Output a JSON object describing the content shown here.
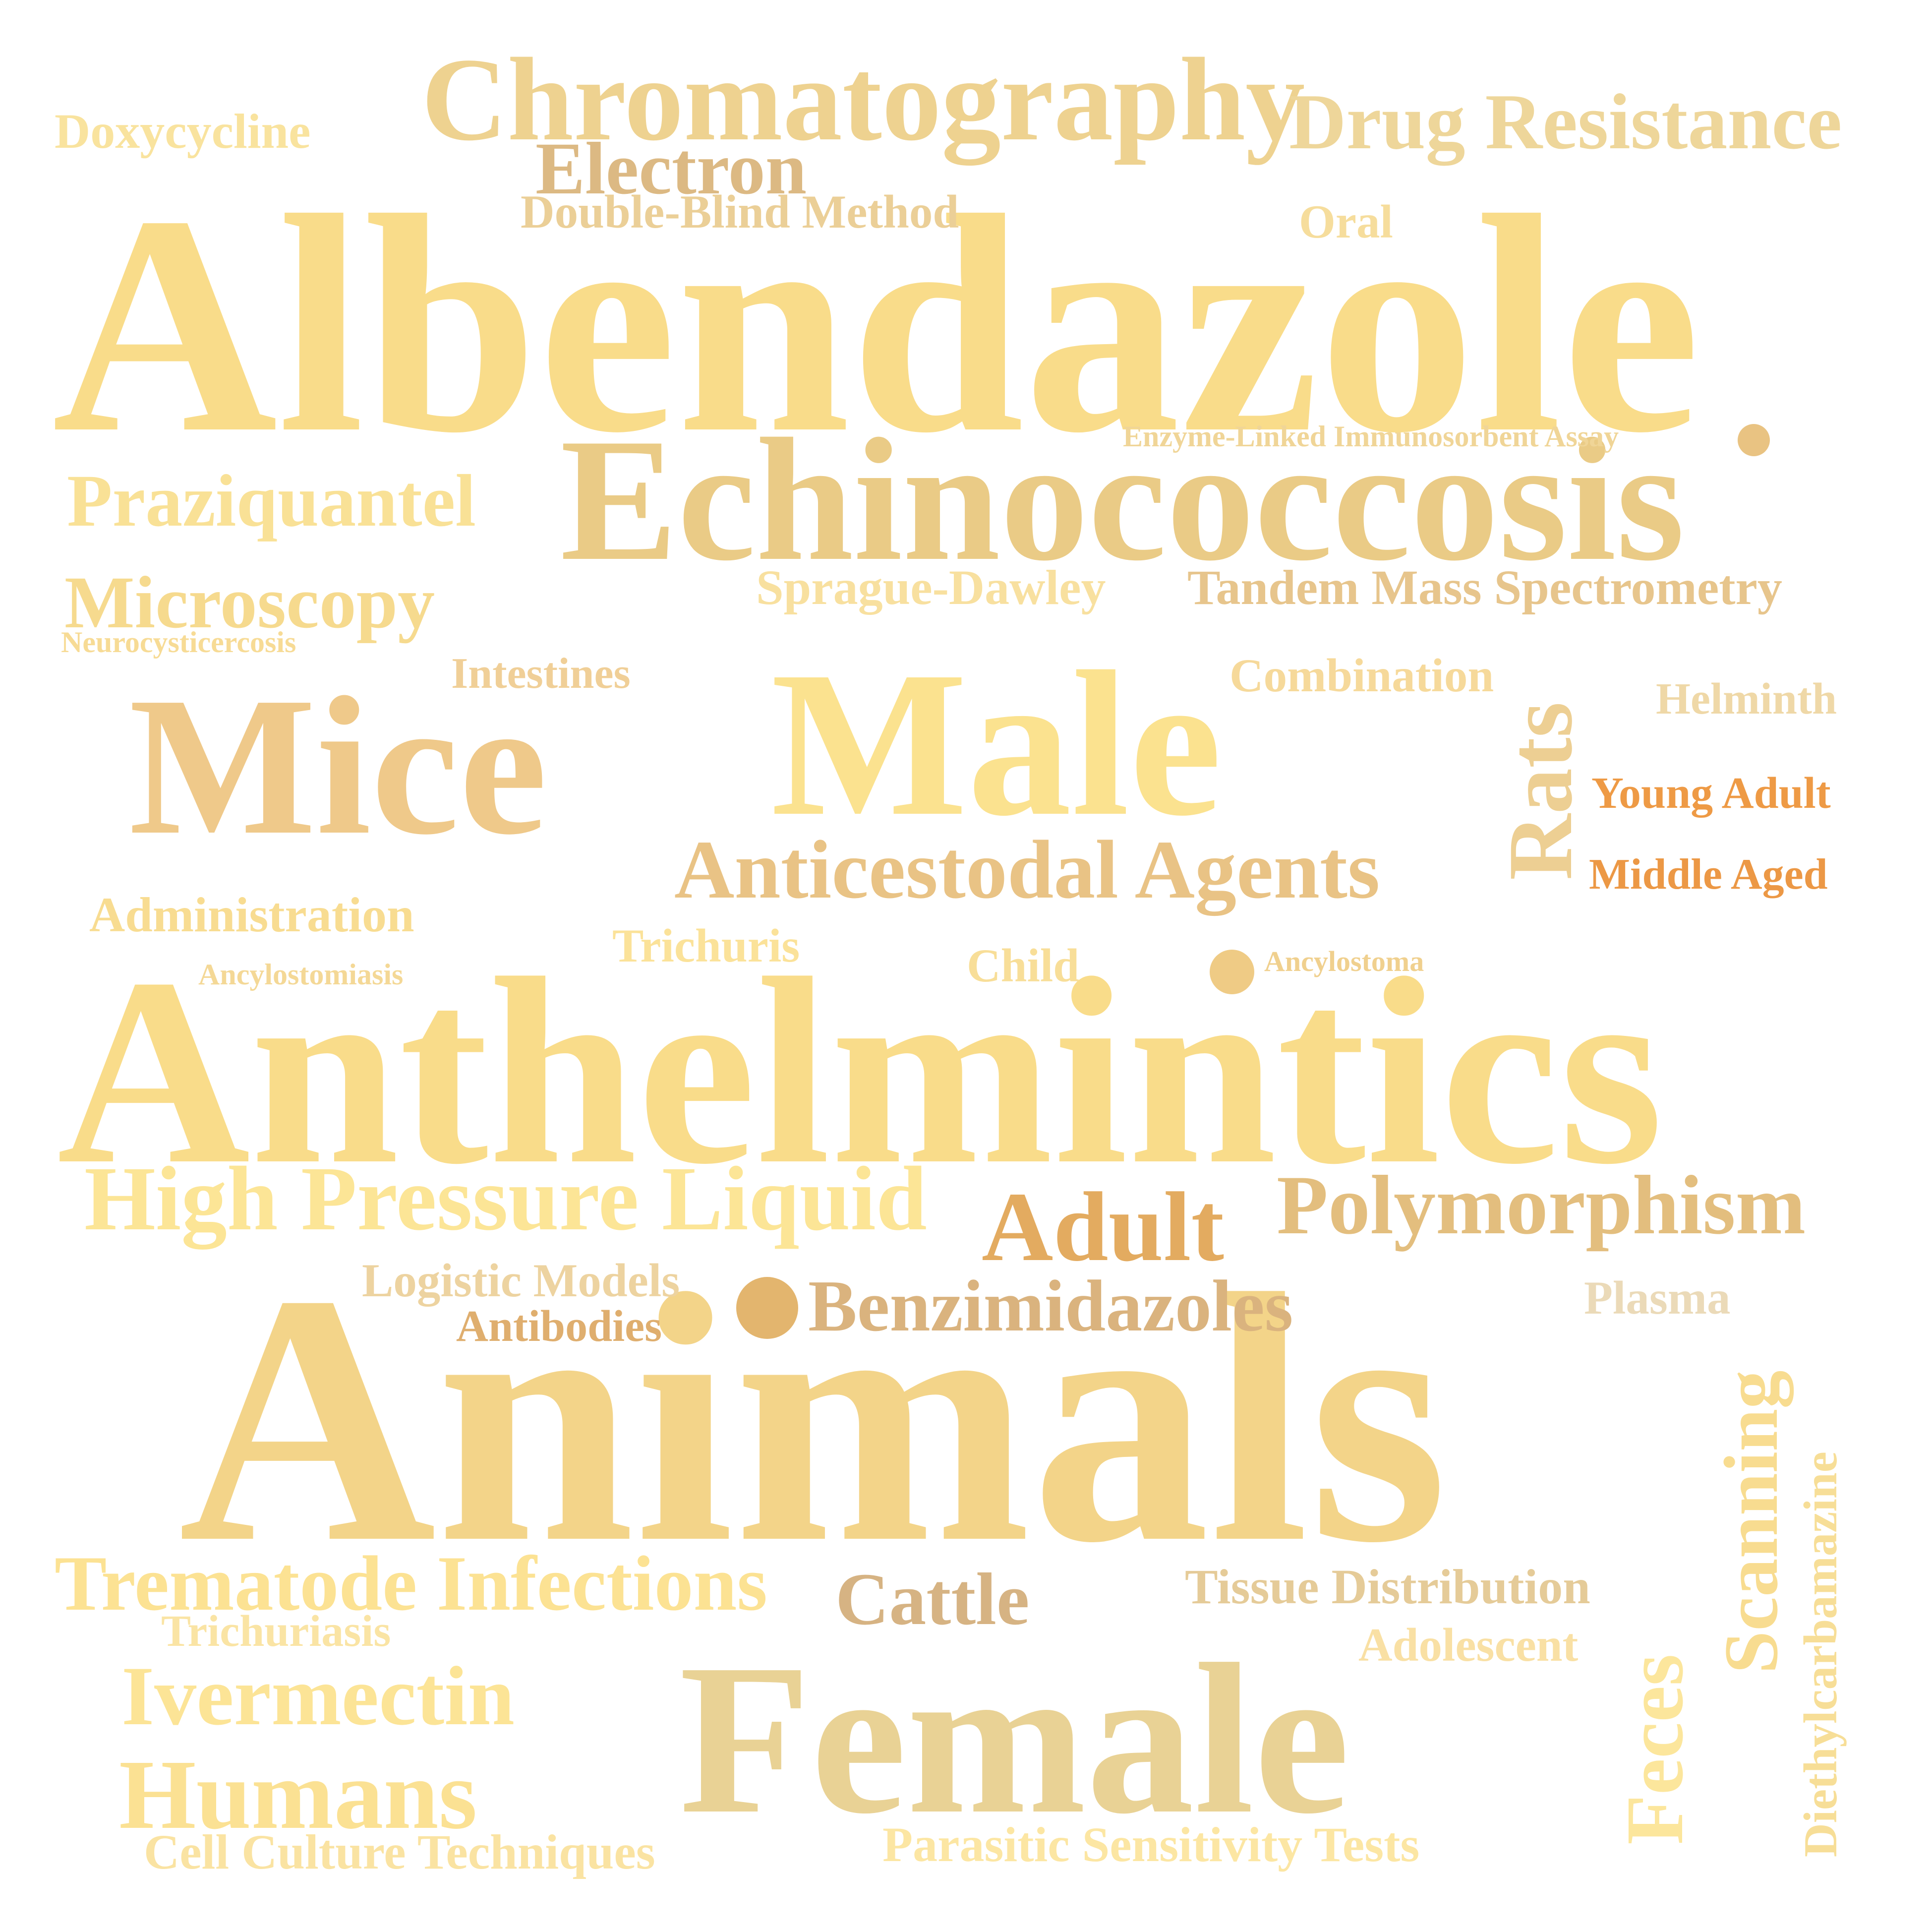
{
  "words": {
    "albendazole": {
      "text": "Albendazole",
      "color": "#F9DC8A"
    },
    "animals": {
      "text": "Animals",
      "color": "#F3D489"
    },
    "anthelmintics": {
      "text": "Anthelmintics",
      "color": "#F9DC8A"
    },
    "echinococcosis": {
      "text": "Echinococcosis",
      "color": "#EACB86"
    },
    "male": {
      "text": "Male",
      "color": "#FBE28F"
    },
    "mice": {
      "text": "Mice",
      "color": "#EFC98A"
    },
    "female": {
      "text": "Female",
      "color": "#E9D295"
    },
    "chromatography": {
      "text": "Chromatography",
      "color": "#EED290"
    },
    "drug_resistance": {
      "text": "Drug Resistance",
      "color": "#EED69A"
    },
    "electron": {
      "text": "Electron",
      "color": "#DCB983"
    },
    "double_blind": {
      "text": "Double-Blind Method",
      "color": "#EBCF97"
    },
    "oral": {
      "text": "Oral",
      "color": "#F6DD9C"
    },
    "doxycycline": {
      "text": "Doxycycline",
      "color": "#F9E39E"
    },
    "enzyme_linked": {
      "text": "Enzyme-Linked Immunosorbent Assay",
      "color": "#F0D597"
    },
    "praziquantel": {
      "text": "Praziquantel",
      "color": "#F9E196"
    },
    "microscopy": {
      "text": "Microscopy",
      "color": "#F6DA8E"
    },
    "neurocysticercosis": {
      "text": "Neurocysticercosis",
      "color": "#F7DB95"
    },
    "sprague_dawley": {
      "text": "Sprague-Dawley",
      "color": "#F8E09F"
    },
    "tandem_ms": {
      "text": "Tandem Mass Spectrometry",
      "color": "#E7C58C"
    },
    "intestines": {
      "text": "Intestines",
      "color": "#F0CF97"
    },
    "combination": {
      "text": "Combination",
      "color": "#F6D99A"
    },
    "rats": {
      "text": "Rats",
      "color": "#EDCF93"
    },
    "helminth": {
      "text": "Helminth",
      "color": "#EFD8A7"
    },
    "young_adult": {
      "text": "Young Adult",
      "color": "#EE9A45"
    },
    "middle_aged": {
      "text": "Middle Aged",
      "color": "#EC9845"
    },
    "anticestodal": {
      "text": "Anticestodal Agents",
      "color": "#E9C385"
    },
    "administration": {
      "text": "Administration",
      "color": "#F8DC91"
    },
    "trichuris": {
      "text": "Trichuris",
      "color": "#FBE299"
    },
    "child": {
      "text": "Child",
      "color": "#F8DE98"
    },
    "ancylostomiasis": {
      "text": "Ancylostomiasis",
      "color": "#F4D896"
    },
    "ancylostoma": {
      "text": "Ancylostoma",
      "color": "#F0D08E"
    },
    "high_pressure": {
      "text": "High Pressure Liquid",
      "color": "#FCE596"
    },
    "adult": {
      "text": "Adult",
      "color": "#E3AB60"
    },
    "polymorphism": {
      "text": "Polymorphism",
      "color": "#E3BE7E"
    },
    "logistic_models": {
      "text": "Logistic Models",
      "color": "#EDD3A0"
    },
    "antibodies": {
      "text": "Antibodies",
      "color": "#DFAE6E"
    },
    "benzimidazoles": {
      "text": "Benzimidazoles",
      "color": "#DAB37E"
    },
    "plasma": {
      "text": "Plasma",
      "color": "#EBDAB8"
    },
    "scanning": {
      "text": "Scanning",
      "color": "#F8DC90"
    },
    "diethylcarbamazine": {
      "text": "Diethylcarbamazine",
      "color": "#F7DE97"
    },
    "trematode": {
      "text": "Trematode Infections",
      "color": "#FCE293"
    },
    "cattle": {
      "text": "Cattle",
      "color": "#D6B383"
    },
    "tissue_distribution": {
      "text": "Tissue Distribution",
      "color": "#E5CB98"
    },
    "trichuriasis": {
      "text": "Trichuriasis",
      "color": "#FAE4A4"
    },
    "adolescent": {
      "text": "Adolescent",
      "color": "#F9E0A4"
    },
    "ivermectin": {
      "text": "Ivermectin",
      "color": "#FCE496"
    },
    "feces": {
      "text": "Feces",
      "color": "#FCE69C"
    },
    "humans": {
      "text": "Humans",
      "color": "#FBE193"
    },
    "cell_culture": {
      "text": "Cell Culture Techniques",
      "color": "#FAE3A2"
    },
    "parasitic": {
      "text": "Parasitic Sensitivity Tests",
      "color": "#FCE6A3"
    }
  },
  "dots": {
    "dot_enzyme": {
      "color": "#E9C382"
    },
    "dot_ancylostoma": {
      "color": "#EFCB85"
    },
    "dot_benzimidazoles": {
      "color": "#E3B56E"
    }
  }
}
